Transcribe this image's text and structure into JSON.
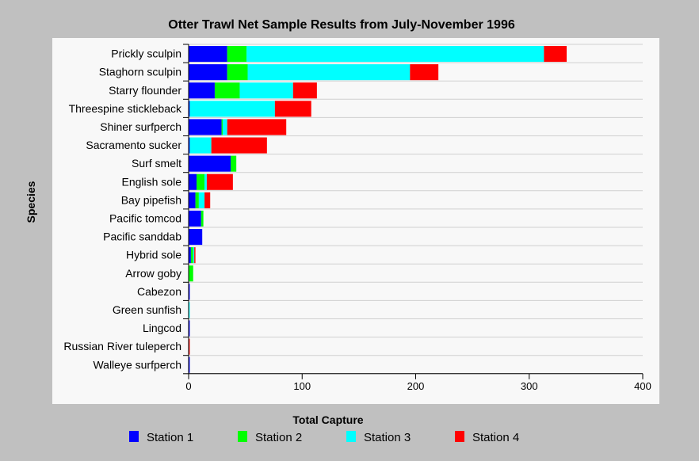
{
  "chart_data": {
    "type": "bar",
    "orientation": "horizontal",
    "stacked": true,
    "title": "Otter Trawl Net Sample Results from July-November 1996",
    "xlabel": "Total Capture",
    "ylabel": "Species",
    "xlim": [
      0,
      400
    ],
    "xticks": [
      0,
      100,
      200,
      300,
      400
    ],
    "grid": "horizontal",
    "legend_position": "bottom",
    "categories": [
      "Prickly sculpin",
      "Staghorn sculpin",
      "Starry flounder",
      "Threespine stickleback",
      "Shiner surfperch",
      "Sacramento sucker",
      "Surf smelt",
      "English sole",
      "Bay pipefish",
      "Pacific tomcod",
      "Pacific sanddab",
      "Hybrid sole",
      "Arrow goby",
      "Cabezon",
      "Green sunfish",
      "Lingcod",
      "Russian River tuleperch",
      "Walleye surfperch"
    ],
    "series": [
      {
        "name": "Station 1",
        "color": "#0000ff",
        "values": [
          34,
          34,
          23,
          1,
          29,
          1,
          37,
          7,
          6,
          11,
          12,
          2,
          0,
          1,
          0,
          1,
          0,
          1
        ]
      },
      {
        "name": "Station 2",
        "color": "#00ff00",
        "values": [
          17,
          18,
          22,
          0,
          1,
          0,
          5,
          7,
          3,
          2,
          0,
          2,
          4,
          0,
          0,
          0,
          0,
          0
        ]
      },
      {
        "name": "Station 3",
        "color": "#00ffff",
        "values": [
          262,
          143,
          47,
          75,
          4,
          19,
          0,
          2,
          5,
          0,
          0,
          1,
          0,
          0,
          1,
          0,
          0,
          0
        ]
      },
      {
        "name": "Station 4",
        "color": "#ff0000",
        "values": [
          20,
          25,
          21,
          32,
          52,
          49,
          0,
          23,
          5,
          0,
          0,
          1,
          0,
          0,
          0,
          0,
          1,
          0
        ]
      }
    ]
  }
}
